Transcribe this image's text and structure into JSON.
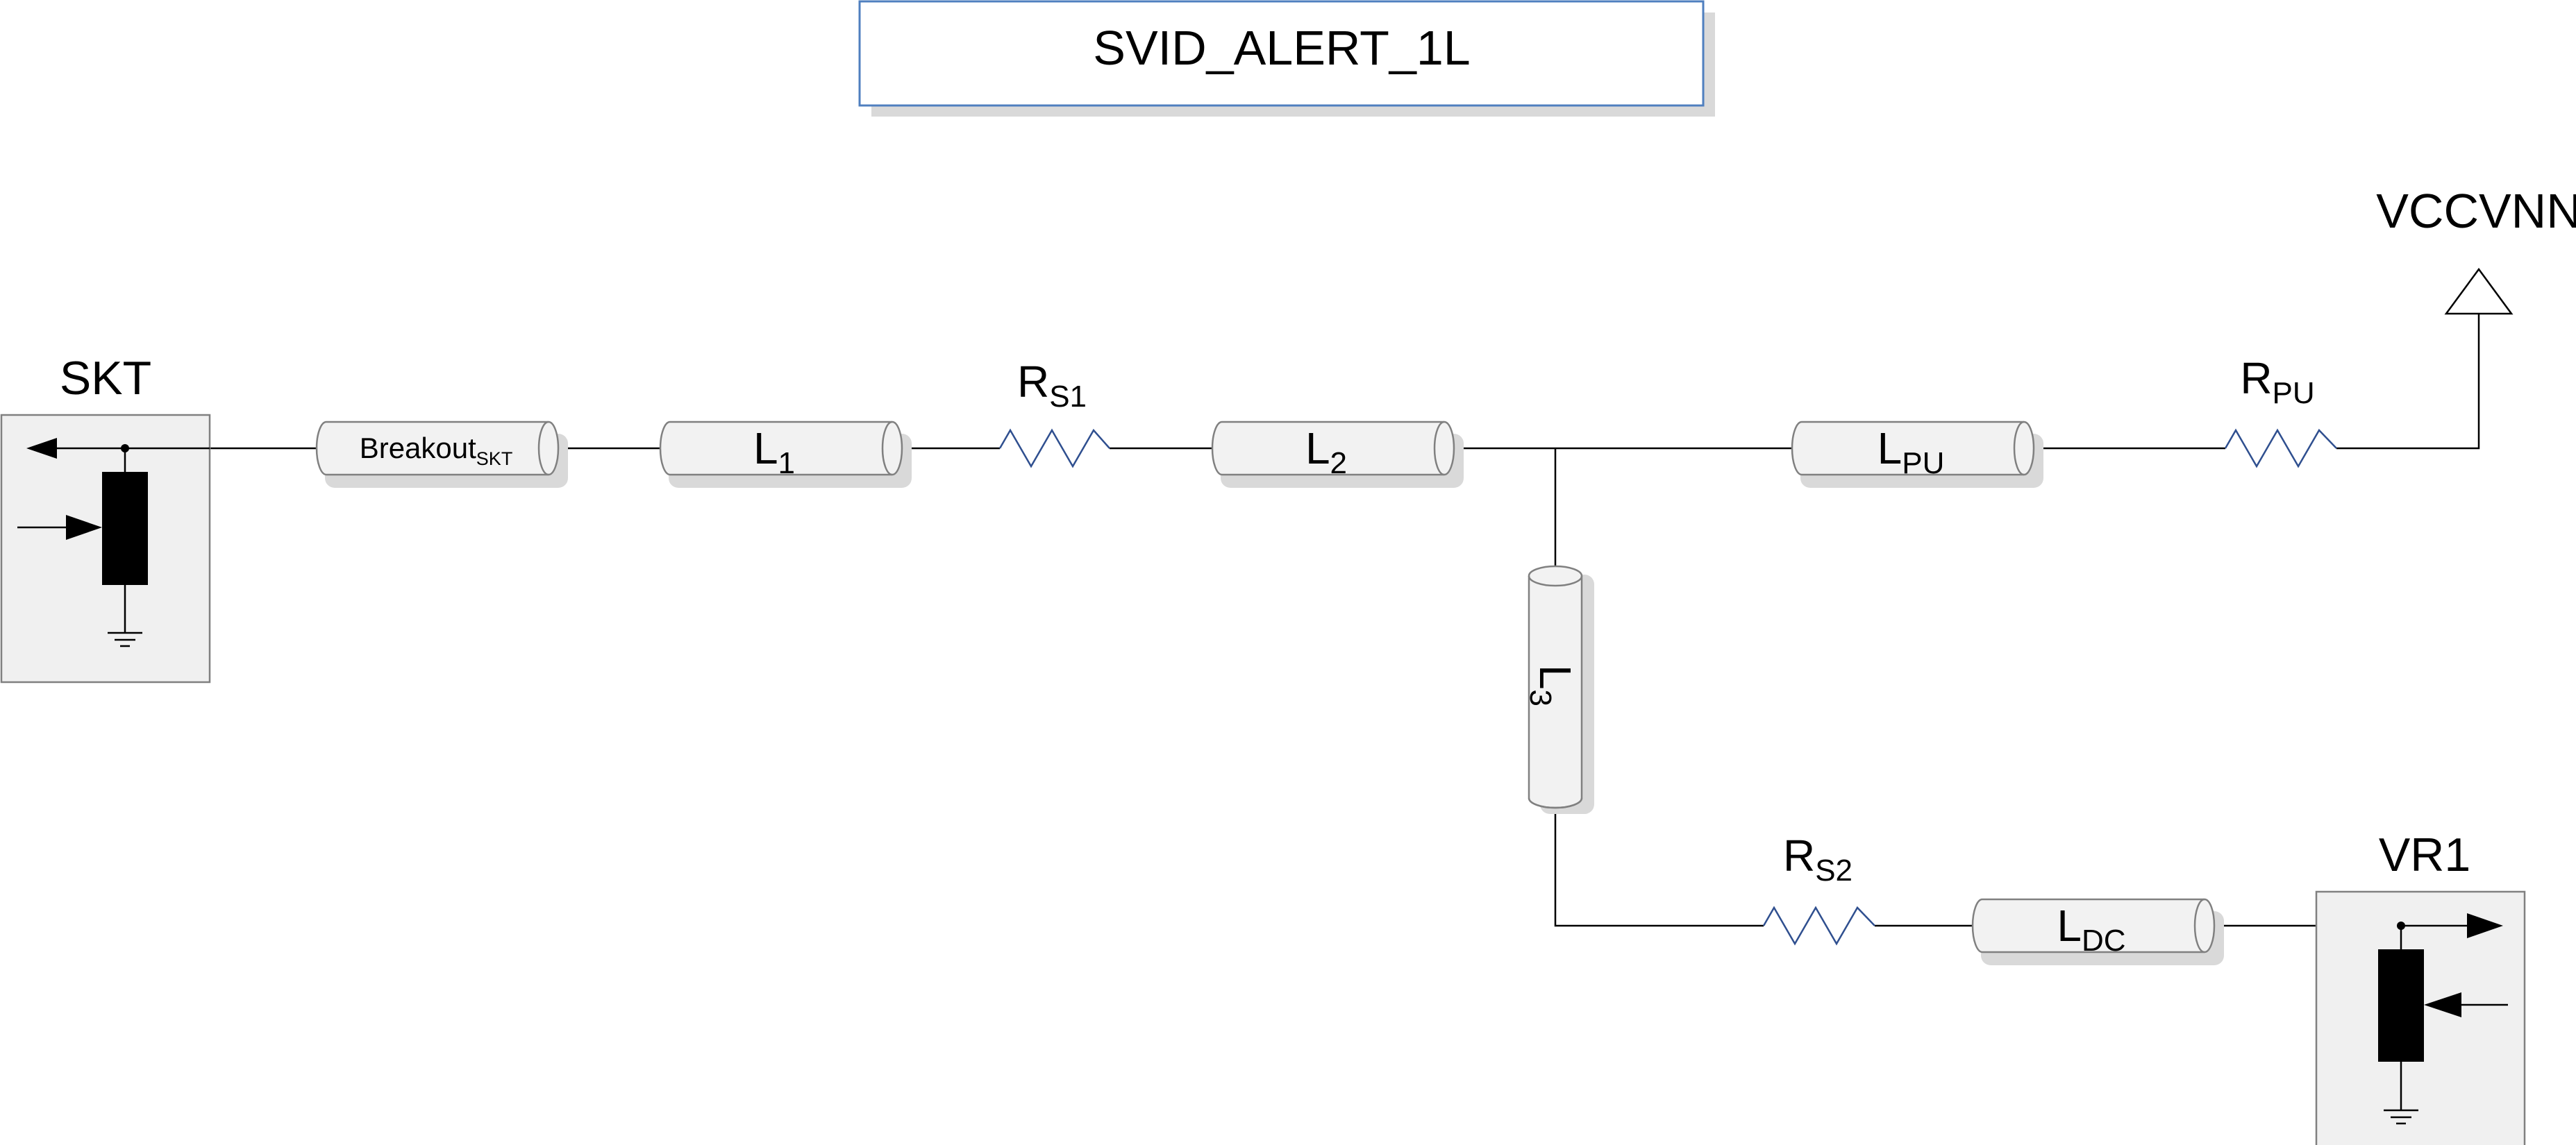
{
  "title": "SVID_ALERT_1L",
  "nodes": {
    "skt": "SKT",
    "vr1": "VR1",
    "supply": "VCCVNN"
  },
  "components": {
    "breakout": {
      "base": "Breakout",
      "sub": "SKT"
    },
    "l1": {
      "base": "L",
      "sub": "1"
    },
    "rs1": {
      "base": "R",
      "sub": "S1"
    },
    "l2": {
      "base": "L",
      "sub": "2"
    },
    "lpu": {
      "base": "L",
      "sub": "PU"
    },
    "rpu": {
      "base": "R",
      "sub": "PU"
    },
    "l3": {
      "base": "L",
      "sub": "3"
    },
    "rs2": {
      "base": "R",
      "sub": "S2"
    },
    "ldc": {
      "base": "L",
      "sub": "DC"
    }
  },
  "colors": {
    "line": "#000000",
    "resistor": "#2f4f8f",
    "tline_fill": "#f2f2f2",
    "box_fill": "#f0f0f0",
    "title_border": "#4f7fbf",
    "shadow": "#d9d9d9"
  }
}
